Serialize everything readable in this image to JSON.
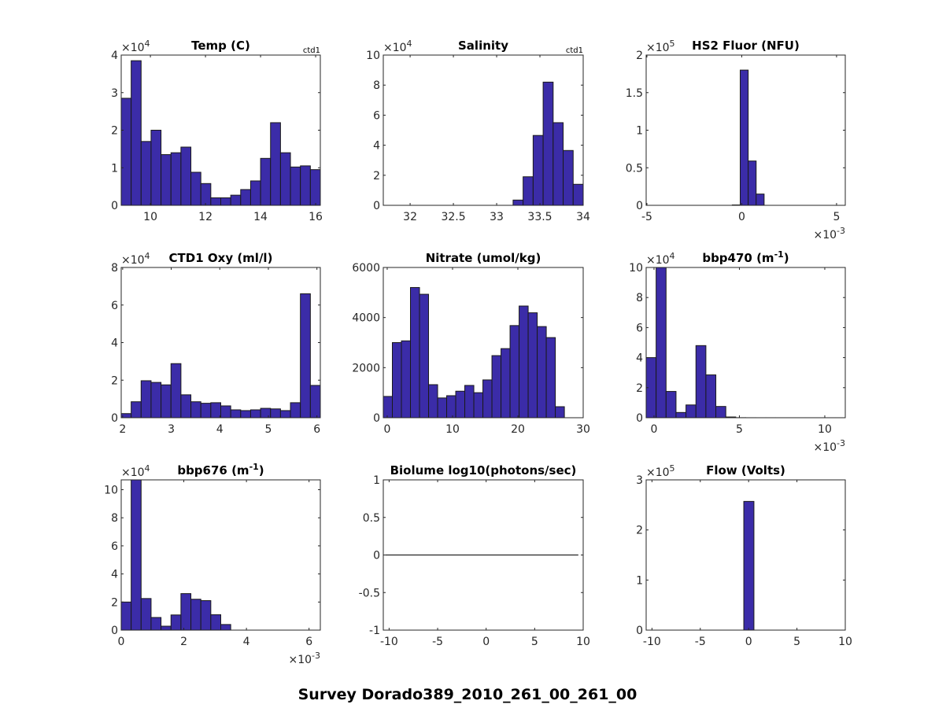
{
  "figure": {
    "suptitle": "Survey Dorado389_2010_261_00_261_00",
    "bar_color": "#3b2ca8",
    "edge_color": "#1a1a1a"
  },
  "chart_data": [
    {
      "type": "bar",
      "title": "Temp (C)",
      "corner_label": "ctd1",
      "xlim": [
        8.94,
        16.17
      ],
      "ylim": [
        0,
        40000
      ],
      "y_multiplier": "×10^4",
      "y_scale": 10000,
      "x_multiplier": "",
      "x_scale": 1,
      "xticks": [
        10,
        12,
        14,
        16
      ],
      "xtick_labels": [
        "10",
        "12",
        "14",
        "16"
      ],
      "yticks": [
        0,
        10000,
        20000,
        30000,
        40000
      ],
      "ytick_labels": [
        "0",
        "1",
        "2",
        "3",
        "4"
      ],
      "bin_start": 8.94,
      "bin_width": 0.3615,
      "values": [
        28500,
        38500,
        17000,
        20000,
        13500,
        14000,
        15500,
        8800,
        5800,
        2000,
        2000,
        2700,
        4200,
        6500,
        12500,
        22000,
        14000,
        10200,
        10500,
        9500
      ]
    },
    {
      "type": "bar",
      "title": "Salinity",
      "corner_label": "ctd1",
      "xlim": [
        31.69,
        34.0
      ],
      "ylim": [
        0,
        100000
      ],
      "y_multiplier": "×10^4",
      "y_scale": 10000,
      "x_multiplier": "",
      "x_scale": 1,
      "xticks": [
        32,
        32.5,
        33,
        33.5,
        34
      ],
      "xtick_labels": [
        "32",
        "32.5",
        "33",
        "33.5",
        "34"
      ],
      "yticks": [
        0,
        20000,
        40000,
        60000,
        80000,
        100000
      ],
      "ytick_labels": [
        "0",
        "2",
        "4",
        "6",
        "8",
        "10"
      ],
      "bin_start": 33.19,
      "bin_width": 0.1157,
      "values": [
        3500,
        19000,
        46500,
        82000,
        55000,
        36500,
        14000
      ]
    },
    {
      "type": "bar",
      "title": "HS2 Fluor (NFU)",
      "corner_label": "",
      "xlim": [
        -5.04,
        5.46
      ],
      "ylim": [
        0,
        200000
      ],
      "y_multiplier": "×10^5",
      "y_scale": 100000,
      "x_multiplier": "×10^-3",
      "x_scale": 0.001,
      "xticks": [
        -5,
        0,
        5
      ],
      "xtick_labels": [
        "-5",
        "0",
        "5"
      ],
      "yticks": [
        0,
        50000,
        100000,
        150000,
        200000
      ],
      "ytick_labels": [
        "0",
        "0.5",
        "1",
        "1.5",
        "2"
      ],
      "bin_start": -0.5,
      "bin_width": 0.42,
      "values": [
        500,
        180000,
        59000,
        15000
      ]
    },
    {
      "type": "bar",
      "title": "CTD1 Oxy (ml/l)",
      "corner_label": "",
      "xlim": [
        1.97,
        6.07
      ],
      "ylim": [
        0,
        80000
      ],
      "y_multiplier": "×10^4",
      "y_scale": 10000,
      "x_multiplier": "",
      "x_scale": 1,
      "xticks": [
        2,
        3,
        4,
        5,
        6
      ],
      "xtick_labels": [
        "2",
        "3",
        "4",
        "5",
        "6"
      ],
      "yticks": [
        0,
        20000,
        40000,
        60000,
        80000
      ],
      "ytick_labels": [
        "0",
        "2",
        "4",
        "6",
        "8"
      ],
      "bin_start": 1.97,
      "bin_width": 0.205,
      "values": [
        2200,
        8500,
        19700,
        18800,
        17500,
        28800,
        12200,
        8500,
        7700,
        8000,
        6300,
        4200,
        3800,
        4200,
        5000,
        4700,
        3800,
        8000,
        66000,
        17200
      ]
    },
    {
      "type": "bar",
      "title": "Nitrate (umol/kg)",
      "corner_label": "",
      "xlim": [
        -0.6,
        30.0
      ],
      "ylim": [
        0,
        6000
      ],
      "y_multiplier": "",
      "y_scale": 1,
      "x_multiplier": "",
      "x_scale": 1,
      "xticks": [
        0,
        10,
        20,
        30
      ],
      "xtick_labels": [
        "0",
        "10",
        "20",
        "30"
      ],
      "yticks": [
        0,
        2000,
        4000,
        6000
      ],
      "ytick_labels": [
        "0",
        "2000",
        "4000",
        "6000"
      ],
      "bin_start": -0.6,
      "bin_width": 1.386,
      "values": [
        850,
        3000,
        3070,
        5200,
        4930,
        1320,
        790,
        880,
        1060,
        1290,
        1000,
        1510,
        2480,
        2760,
        3680,
        4460,
        4190,
        3640,
        3200,
        440
      ]
    },
    {
      "type": "bar",
      "title": "bbp470 (m",
      "title_sup": "-1",
      "title_end": ")",
      "corner_label": "",
      "xlim": [
        -0.46,
        11.2
      ],
      "ylim": [
        0,
        100000
      ],
      "y_multiplier": "×10^4",
      "y_scale": 10000,
      "x_multiplier": "×10^-3",
      "x_scale": 0.001,
      "xticks": [
        0,
        5,
        10
      ],
      "xtick_labels": [
        "0",
        "5",
        "10"
      ],
      "yticks": [
        0,
        20000,
        40000,
        60000,
        80000,
        100000
      ],
      "ytick_labels": [
        "0",
        "2",
        "4",
        "6",
        "8",
        "10"
      ],
      "bin_start": -0.46,
      "bin_width": 0.583,
      "values": [
        40000,
        103000,
        17500,
        3500,
        8500,
        48000,
        28500,
        7500,
        500,
        50,
        20,
        10,
        10,
        5,
        5,
        5,
        5,
        5,
        5,
        5
      ]
    },
    {
      "type": "bar",
      "title": "bbp676 (m",
      "title_sup": "-1",
      "title_end": ")",
      "corner_label": "",
      "xlim": [
        0,
        6.36
      ],
      "ylim": [
        0,
        107000
      ],
      "y_multiplier": "×10^4",
      "y_scale": 10000,
      "x_multiplier": "×10^-3",
      "x_scale": 0.001,
      "xticks": [
        0,
        2,
        4,
        6
      ],
      "xtick_labels": [
        "0",
        "2",
        "4",
        "6"
      ],
      "yticks": [
        0,
        20000,
        40000,
        60000,
        80000,
        100000
      ],
      "ytick_labels": [
        "0",
        "2",
        "4",
        "6",
        "8",
        "10"
      ],
      "bin_start": 0,
      "bin_width": 0.318,
      "values": [
        20000,
        110000,
        22500,
        9000,
        2800,
        10800,
        26000,
        22000,
        21000,
        11000,
        4000,
        0,
        0,
        0,
        0,
        0,
        0,
        0,
        0,
        0
      ]
    },
    {
      "type": "line",
      "title": "Biolume log10(photons/sec)",
      "corner_label": "",
      "xlim": [
        -10.6,
        10.0
      ],
      "ylim": [
        -1,
        1
      ],
      "y_multiplier": "",
      "y_scale": 1,
      "x_multiplier": "",
      "x_scale": 1,
      "xticks": [
        -10,
        -5,
        0,
        5,
        10
      ],
      "xtick_labels": [
        "-10",
        "-5",
        "0",
        "5",
        "10"
      ],
      "yticks": [
        -1,
        -0.5,
        0,
        0.5,
        1
      ],
      "ytick_labels": [
        "-1",
        "-0.5",
        "0",
        "0.5",
        "1"
      ],
      "x": [
        -10.5,
        9.5
      ],
      "y": [
        0,
        0
      ]
    },
    {
      "type": "bar",
      "title": "Flow (Volts)",
      "corner_label": "",
      "xlim": [
        -10.6,
        10.0
      ],
      "ylim": [
        0,
        300000
      ],
      "y_multiplier": "×10^5",
      "y_scale": 100000,
      "x_multiplier": "",
      "x_scale": 1,
      "xticks": [
        -10,
        -5,
        0,
        5,
        10
      ],
      "xtick_labels": [
        "-10",
        "-5",
        "0",
        "5",
        "10"
      ],
      "yticks": [
        0,
        100000,
        200000,
        300000
      ],
      "ytick_labels": [
        "0",
        "1",
        "2",
        "3"
      ],
      "bin_start": -0.5,
      "bin_width": 1.05,
      "values": [
        257000
      ]
    }
  ]
}
